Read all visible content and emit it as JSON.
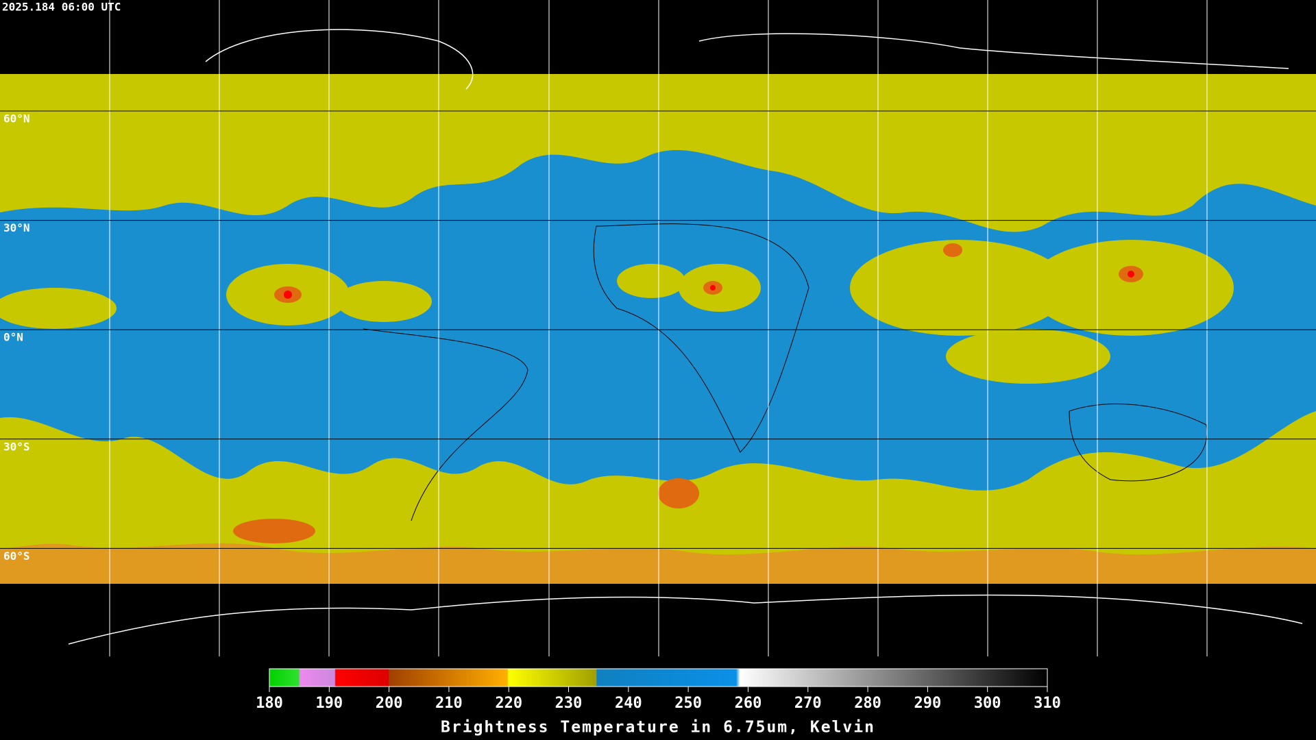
{
  "header": {
    "timestamp": "2025.184 06:00 UTC"
  },
  "map": {
    "latitude_labels": [
      "60°N",
      "30°N",
      "0°N",
      "30°S",
      "60°S"
    ]
  },
  "colorbar": {
    "title": "Brightness Temperature in 6.75um, Kelvin",
    "lim": [
      180,
      310
    ],
    "ticks": [
      180,
      190,
      200,
      210,
      220,
      230,
      240,
      250,
      260,
      270,
      280,
      290,
      300,
      310
    ]
  }
}
